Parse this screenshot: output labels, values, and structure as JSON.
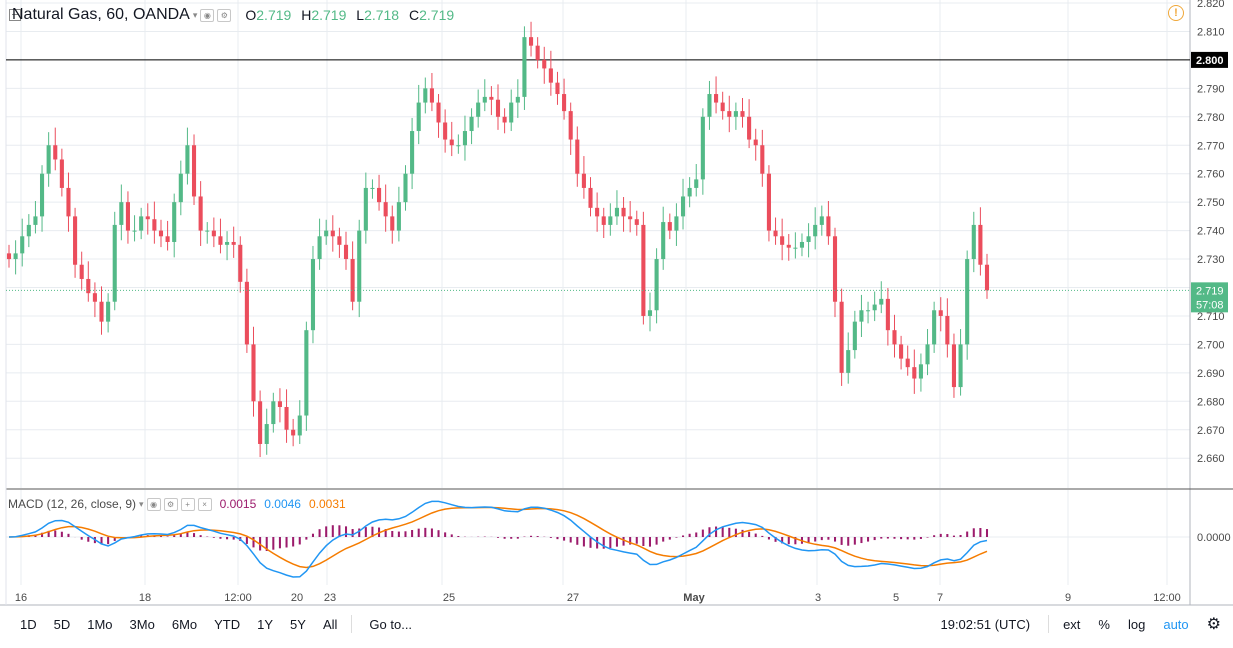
{
  "header": {
    "title": "Natural Gas, 60, OANDA",
    "open_label": "O",
    "open": "2.719",
    "high_label": "H",
    "high": "2.719",
    "low_label": "L",
    "low": "2.718",
    "close_label": "C",
    "close": "2.719"
  },
  "macd_header": {
    "title": "MACD (12, 26, close, 9)",
    "hist": "0.0015",
    "macd": "0.0046",
    "signal": "0.0031"
  },
  "colors": {
    "up": "#53b987",
    "down": "#eb4d5c",
    "macd": "#2196f3",
    "signal": "#f57c00",
    "hist": "#9c1b6c",
    "grid": "#e8ecf0",
    "axis_text": "#4a4a4a",
    "last_price": "#53b987"
  },
  "price_axis": {
    "ticks": [
      "2.820",
      "2.810",
      "2.800",
      "2.790",
      "2.780",
      "2.770",
      "2.760",
      "2.750",
      "2.740",
      "2.730",
      "2.720",
      "2.710",
      "2.700",
      "2.690",
      "2.680",
      "2.670",
      "2.660"
    ]
  },
  "horizontal_line": {
    "label": "2.800",
    "value": 2.8
  },
  "last_price": {
    "label": "2.719",
    "countdown": "57:08",
    "value": 2.719
  },
  "macd_axis": {
    "label": "0.0000"
  },
  "time_axis": {
    "labels": [
      "16",
      "18",
      "12:00",
      "20",
      "23",
      "25",
      "27",
      "May",
      "3",
      "5",
      "7",
      "9",
      "12:00"
    ]
  },
  "toolbar": {
    "timeframes": [
      "1D",
      "5D",
      "1Mo",
      "3Mo",
      "6Mo",
      "YTD",
      "1Y",
      "5Y",
      "All"
    ],
    "goto": "Go to...",
    "clock": "19:02:51 (UTC)",
    "ext": "ext",
    "percent": "%",
    "log": "log",
    "auto": "auto"
  },
  "chart_data": {
    "type": "candlestick",
    "title": "Natural Gas, 60, OANDA",
    "ylim": [
      2.655,
      2.822
    ],
    "close_series": [
      2.73,
      2.732,
      2.738,
      2.742,
      2.745,
      2.76,
      2.77,
      2.765,
      2.755,
      2.745,
      2.728,
      2.723,
      2.718,
      2.715,
      2.708,
      2.715,
      2.742,
      2.75,
      2.74,
      2.74,
      2.745,
      2.744,
      2.74,
      2.738,
      2.736,
      2.75,
      2.76,
      2.77,
      2.752,
      2.74,
      2.74,
      2.738,
      2.735,
      2.736,
      2.735,
      2.722,
      2.7,
      2.68,
      2.665,
      2.672,
      2.68,
      2.678,
      2.67,
      2.668,
      2.675,
      2.705,
      2.73,
      2.738,
      2.74,
      2.738,
      2.735,
      2.73,
      2.715,
      2.74,
      2.755,
      2.755,
      2.75,
      2.745,
      2.74,
      2.75,
      2.76,
      2.775,
      2.785,
      2.79,
      2.785,
      2.778,
      2.772,
      2.77,
      2.77,
      2.775,
      2.78,
      2.785,
      2.787,
      2.786,
      2.78,
      2.778,
      2.785,
      2.787,
      2.808,
      2.805,
      2.8,
      2.797,
      2.792,
      2.788,
      2.782,
      2.772,
      2.76,
      2.755,
      2.748,
      2.745,
      2.742,
      2.745,
      2.748,
      2.745,
      2.744,
      2.742,
      2.71,
      2.712,
      2.73,
      2.743,
      2.74,
      2.745,
      2.752,
      2.755,
      2.758,
      2.78,
      2.788,
      2.785,
      2.782,
      2.78,
      2.782,
      2.78,
      2.772,
      2.77,
      2.76,
      2.74,
      2.738,
      2.735,
      2.734,
      2.734,
      2.736,
      2.738,
      2.742,
      2.745,
      2.738,
      2.715,
      2.69,
      2.698,
      2.708,
      2.712,
      2.712,
      2.714,
      2.716,
      2.705,
      2.7,
      2.695,
      2.692,
      2.688,
      2.693,
      2.7,
      2.712,
      2.71,
      2.7,
      2.685,
      2.7,
      2.73,
      2.742,
      2.728,
      2.719
    ],
    "series": [
      {
        "name": "MACD",
        "color": "#2196f3"
      },
      {
        "name": "Signal",
        "color": "#f57c00"
      },
      {
        "name": "Histogram",
        "color": "#9c1b6c"
      }
    ],
    "x_tick_labels": [
      "16",
      "18",
      "12:00",
      "20",
      "23",
      "25",
      "27",
      "May",
      "3",
      "5",
      "7",
      "9",
      "12:00"
    ],
    "y_tick_labels": [
      "2.820",
      "2.810",
      "2.800",
      "2.790",
      "2.780",
      "2.770",
      "2.760",
      "2.750",
      "2.740",
      "2.730",
      "2.720",
      "2.710",
      "2.700",
      "2.690",
      "2.680",
      "2.670",
      "2.660"
    ],
    "hline": 2.8,
    "last": 2.719,
    "macd_last": {
      "hist": 0.0015,
      "macd": 0.0046,
      "signal": 0.0031
    }
  }
}
